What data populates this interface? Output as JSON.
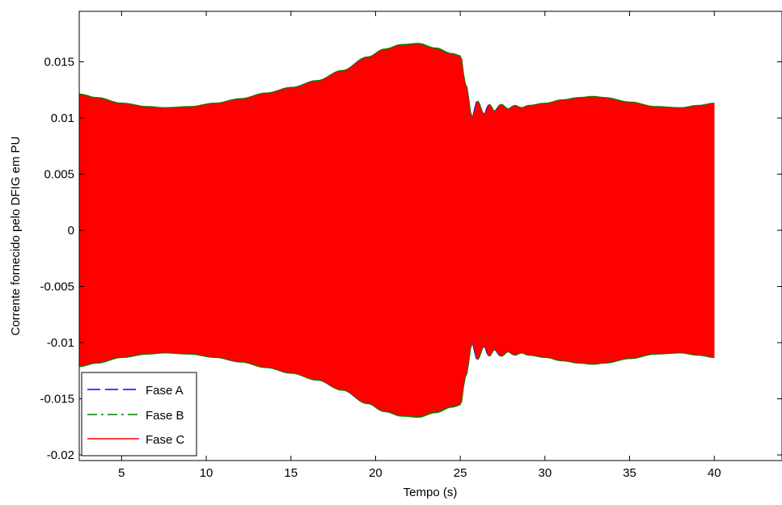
{
  "chart_data": {
    "type": "line",
    "title": "",
    "xlabel": "Tempo (s)",
    "ylabel": "Corrente fornecido pelo DFIG em PU",
    "xlim": [
      2.5,
      44
    ],
    "ylim": [
      -0.0205,
      0.0195
    ],
    "xticks": [
      5,
      10,
      15,
      20,
      25,
      30,
      35,
      40
    ],
    "xtick_labels": [
      "5",
      "10",
      "15",
      "20",
      "25",
      "30",
      "35",
      "40"
    ],
    "yticks": [
      0.015,
      0.01,
      0.005,
      0,
      -0.005,
      -0.01,
      -0.015,
      -0.02
    ],
    "ytick_labels": [
      "0.015",
      "0.01",
      "0.005",
      "0",
      "-0.005",
      "-0.01",
      "-0.015",
      "-0.02"
    ],
    "grid": false,
    "legend_position": "bottom-left",
    "series": [
      {
        "name": "Fase A",
        "color": "#0000ff",
        "style": "dashed"
      },
      {
        "name": "Fase B",
        "color": "#008000",
        "style": "dash-dot"
      },
      {
        "name": "Fase C",
        "color": "#ff0000",
        "style": "solid"
      }
    ],
    "envelope": {
      "description_note": "three-phase AC current, oscillating rapidly; values are the amplitude envelope (upper bound; lower bound is its negative)",
      "t": [
        2.5,
        3.5,
        5,
        6.5,
        7.5,
        9,
        10.5,
        12,
        13.5,
        15,
        16.5,
        18,
        19.5,
        20.5,
        21.5,
        22.5,
        23.5,
        24.5,
        25.0,
        25.3,
        25.7,
        26.0,
        26.4,
        26.7,
        27.0,
        27.4,
        27.8,
        28.2,
        28.6,
        29.0,
        30.0,
        31.0,
        32.0,
        32.8,
        33.5,
        35.0,
        36.5,
        38.0,
        39.0,
        40.0
      ],
      "amplitude": [
        0.0121,
        0.0118,
        0.0113,
        0.011,
        0.0109,
        0.011,
        0.0113,
        0.0117,
        0.0122,
        0.0127,
        0.0133,
        0.0142,
        0.0154,
        0.0161,
        0.0165,
        0.0166,
        0.0162,
        0.0157,
        0.0155,
        0.013,
        0.01,
        0.0115,
        0.0103,
        0.0112,
        0.0106,
        0.0112,
        0.0108,
        0.0111,
        0.0109,
        0.0111,
        0.0113,
        0.0116,
        0.0118,
        0.0119,
        0.0118,
        0.0114,
        0.011,
        0.0109,
        0.0111,
        0.0113
      ]
    }
  }
}
